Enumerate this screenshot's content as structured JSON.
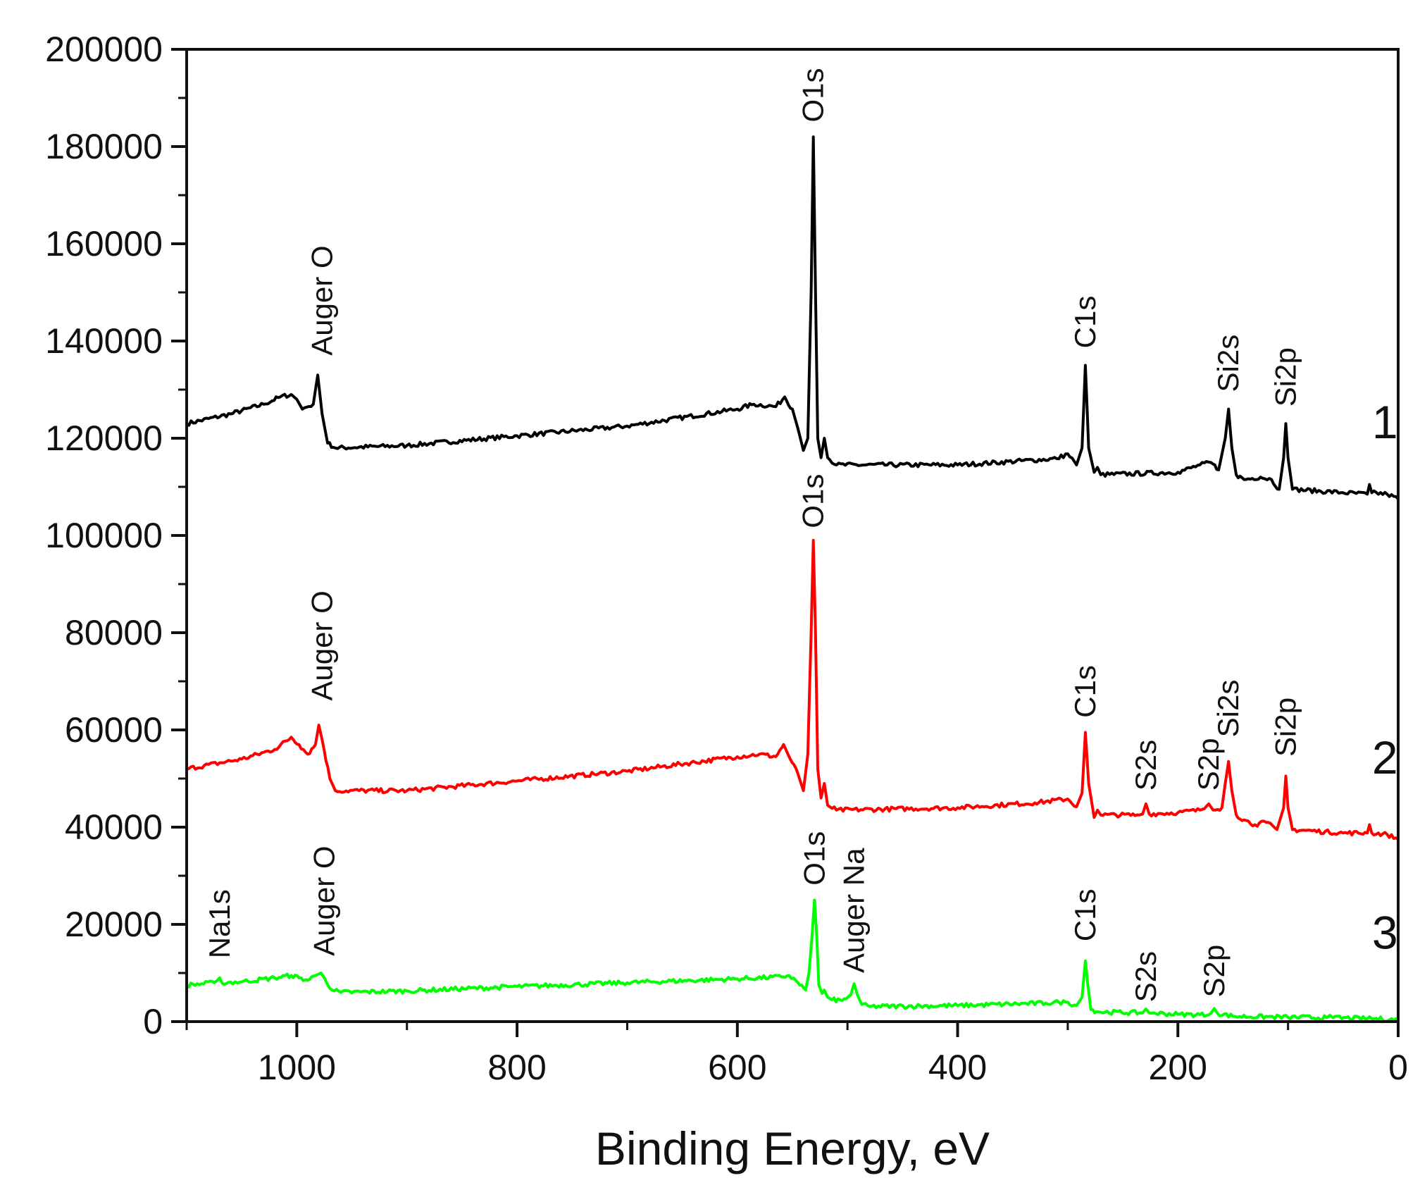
{
  "chart_data": {
    "type": "line",
    "title": "",
    "xlabel": "Binding Energy, eV",
    "ylabel": "",
    "xlim": [
      1100,
      0
    ],
    "ylim": [
      0,
      200000
    ],
    "x_ticks": [
      1000,
      800,
      600,
      400,
      200,
      0
    ],
    "y_ticks": [
      0,
      20000,
      40000,
      60000,
      80000,
      100000,
      120000,
      140000,
      160000,
      180000,
      200000
    ],
    "x_tick_labels": [
      "1000",
      "800",
      "600",
      "400",
      "200",
      "0"
    ],
    "y_tick_labels": [
      "0",
      "20000",
      "40000",
      "60000",
      "80000",
      "100000",
      "120000",
      "140000",
      "160000",
      "180000",
      "200000"
    ],
    "grid": false,
    "series": [
      {
        "name": "1",
        "color": "#000000",
        "label_x": 12,
        "label_y": 120000,
        "points": [
          [
            1100,
            123000
          ],
          [
            1060,
            125000
          ],
          [
            1030,
            127000
          ],
          [
            1015,
            128500
          ],
          [
            1005,
            129000
          ],
          [
            1000,
            128000
          ],
          [
            995,
            126000
          ],
          [
            985,
            127000
          ],
          [
            981,
            133000
          ],
          [
            977,
            125000
          ],
          [
            972,
            119000
          ],
          [
            965,
            118000
          ],
          [
            900,
            118500
          ],
          [
            800,
            120500
          ],
          [
            700,
            122500
          ],
          [
            600,
            126000
          ],
          [
            585,
            127000
          ],
          [
            565,
            126500
          ],
          [
            557,
            128500
          ],
          [
            550,
            126000
          ],
          [
            545,
            122000
          ],
          [
            540,
            117500
          ],
          [
            536,
            120000
          ],
          [
            533,
            150000
          ],
          [
            531,
            182000
          ],
          [
            529,
            150000
          ],
          [
            527,
            120000
          ],
          [
            524,
            116000
          ],
          [
            521,
            120000
          ],
          [
            518,
            116000
          ],
          [
            510,
            114500
          ],
          [
            400,
            114500
          ],
          [
            310,
            115800
          ],
          [
            300,
            116800
          ],
          [
            292,
            114500
          ],
          [
            287,
            118000
          ],
          [
            284,
            135000
          ],
          [
            281,
            118000
          ],
          [
            276,
            113000
          ],
          [
            273,
            114000
          ],
          [
            270,
            112500
          ],
          [
            200,
            113000
          ],
          [
            180,
            114500
          ],
          [
            170,
            115000
          ],
          [
            163,
            113500
          ],
          [
            157,
            120000
          ],
          [
            154,
            126000
          ],
          [
            151,
            118000
          ],
          [
            147,
            112500
          ],
          [
            140,
            111500
          ],
          [
            125,
            112000
          ],
          [
            115,
            111500
          ],
          [
            108,
            109500
          ],
          [
            104,
            116000
          ],
          [
            102,
            123000
          ],
          [
            100,
            116000
          ],
          [
            96,
            109500
          ],
          [
            50,
            108800
          ],
          [
            28,
            108500
          ],
          [
            26,
            110500
          ],
          [
            24,
            108800
          ],
          [
            10,
            108500
          ],
          [
            0,
            107500
          ]
        ]
      },
      {
        "name": "2",
        "color": "#ff0000",
        "label_x": 12,
        "label_y": 51000,
        "points": [
          [
            1100,
            52000
          ],
          [
            1050,
            54000
          ],
          [
            1020,
            56000
          ],
          [
            1005,
            58500
          ],
          [
            998,
            57000
          ],
          [
            990,
            55000
          ],
          [
            983,
            57000
          ],
          [
            980,
            61000
          ],
          [
            977,
            58000
          ],
          [
            970,
            50000
          ],
          [
            965,
            47500
          ],
          [
            900,
            47500
          ],
          [
            800,
            49500
          ],
          [
            700,
            51500
          ],
          [
            600,
            54500
          ],
          [
            580,
            55000
          ],
          [
            565,
            54500
          ],
          [
            558,
            57000
          ],
          [
            552,
            54000
          ],
          [
            545,
            51000
          ],
          [
            540,
            47500
          ],
          [
            536,
            55000
          ],
          [
            533,
            80000
          ],
          [
            531,
            99000
          ],
          [
            529,
            80000
          ],
          [
            527,
            52000
          ],
          [
            524,
            46000
          ],
          [
            521,
            49000
          ],
          [
            518,
            44500
          ],
          [
            510,
            43500
          ],
          [
            400,
            44000
          ],
          [
            330,
            45000
          ],
          [
            300,
            45800
          ],
          [
            292,
            44200
          ],
          [
            287,
            47000
          ],
          [
            284,
            59500
          ],
          [
            281,
            49000
          ],
          [
            276,
            42000
          ],
          [
            273,
            43500
          ],
          [
            270,
            42500
          ],
          [
            235,
            42500
          ],
          [
            232,
            42700
          ],
          [
            229,
            44800
          ],
          [
            226,
            42700
          ],
          [
            200,
            43000
          ],
          [
            180,
            43500
          ],
          [
            176,
            43800
          ],
          [
            172,
            44800
          ],
          [
            168,
            43500
          ],
          [
            160,
            44000
          ],
          [
            157,
            49000
          ],
          [
            154,
            53500
          ],
          [
            151,
            47500
          ],
          [
            147,
            42500
          ],
          [
            140,
            41500
          ],
          [
            130,
            40500
          ],
          [
            120,
            41000
          ],
          [
            110,
            39500
          ],
          [
            104,
            44000
          ],
          [
            102,
            50500
          ],
          [
            100,
            44000
          ],
          [
            96,
            39500
          ],
          [
            50,
            38800
          ],
          [
            28,
            38800
          ],
          [
            26,
            40500
          ],
          [
            24,
            38800
          ],
          [
            10,
            38500
          ],
          [
            0,
            37500
          ]
        ]
      },
      {
        "name": "3",
        "color": "#00ff00",
        "label_x": 12,
        "label_y": 15000,
        "points": [
          [
            1100,
            7500
          ],
          [
            1075,
            8000
          ],
          [
            1072,
            8500
          ],
          [
            1070,
            9000
          ],
          [
            1068,
            8000
          ],
          [
            1050,
            8200
          ],
          [
            1020,
            9000
          ],
          [
            1005,
            9500
          ],
          [
            998,
            9000
          ],
          [
            990,
            8500
          ],
          [
            983,
            9500
          ],
          [
            978,
            10000
          ],
          [
            975,
            9000
          ],
          [
            968,
            6500
          ],
          [
            960,
            6000
          ],
          [
            900,
            6300
          ],
          [
            800,
            7200
          ],
          [
            700,
            8000
          ],
          [
            600,
            8800
          ],
          [
            560,
            9200
          ],
          [
            553,
            9500
          ],
          [
            545,
            8000
          ],
          [
            538,
            6500
          ],
          [
            535,
            10000
          ],
          [
            532,
            18000
          ],
          [
            530,
            25000
          ],
          [
            528,
            18000
          ],
          [
            526,
            7500
          ],
          [
            523,
            5800
          ],
          [
            521,
            6500
          ],
          [
            518,
            5000
          ],
          [
            514,
            4500
          ],
          [
            505,
            4300
          ],
          [
            497,
            5500
          ],
          [
            494,
            7800
          ],
          [
            491,
            5500
          ],
          [
            487,
            3500
          ],
          [
            480,
            3100
          ],
          [
            400,
            3300
          ],
          [
            320,
            3800
          ],
          [
            308,
            4000
          ],
          [
            300,
            4000
          ],
          [
            292,
            3300
          ],
          [
            287,
            5000
          ],
          [
            284,
            12500
          ],
          [
            282,
            8000
          ],
          [
            279,
            2500
          ],
          [
            272,
            2000
          ],
          [
            235,
            1800
          ],
          [
            232,
            1800
          ],
          [
            229,
            2600
          ],
          [
            226,
            1800
          ],
          [
            200,
            1500
          ],
          [
            172,
            1400
          ],
          [
            170,
            1700
          ],
          [
            167,
            2700
          ],
          [
            164,
            1700
          ],
          [
            150,
            1100
          ],
          [
            100,
            900
          ],
          [
            65,
            800
          ],
          [
            62,
            1300
          ],
          [
            59,
            800
          ],
          [
            28,
            600
          ],
          [
            26,
            1000
          ],
          [
            24,
            600
          ],
          [
            0,
            400
          ]
        ]
      }
    ],
    "annotations": [
      {
        "text": "Auger O",
        "x": 977,
        "y": 137000
      },
      {
        "text": "O1s",
        "x": 531,
        "y": 185000
      },
      {
        "text": "C1s",
        "x": 284,
        "y": 138500
      },
      {
        "text": "Si2s",
        "x": 154,
        "y": 129500
      },
      {
        "text": "Si2p",
        "x": 102,
        "y": 126500
      },
      {
        "text": "Auger O",
        "x": 977,
        "y": 66000
      },
      {
        "text": "O1s",
        "x": 531,
        "y": 101500
      },
      {
        "text": "C1s",
        "x": 284,
        "y": 62500
      },
      {
        "text": "S2s",
        "x": 229,
        "y": 47500
      },
      {
        "text": "S2p",
        "x": 172,
        "y": 47500
      },
      {
        "text": "Si2s",
        "x": 154,
        "y": 58500
      },
      {
        "text": "Si2p",
        "x": 102,
        "y": 54500
      },
      {
        "text": "Na1s",
        "x": 1070,
        "y": 13000
      },
      {
        "text": "Auger O",
        "x": 975,
        "y": 13500
      },
      {
        "text": "O1s",
        "x": 530,
        "y": 28000
      },
      {
        "text": "Auger Na",
        "x": 494,
        "y": 10000
      },
      {
        "text": "C1s",
        "x": 284,
        "y": 16500
      },
      {
        "text": "S2s",
        "x": 229,
        "y": 4000
      },
      {
        "text": "S2p",
        "x": 167,
        "y": 5000
      }
    ]
  }
}
